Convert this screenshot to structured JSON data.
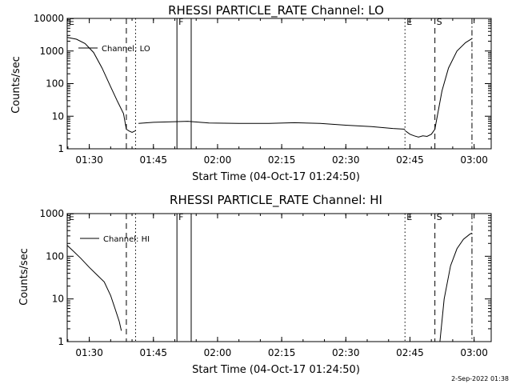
{
  "timestamp": "2-Sep-2022 01:38",
  "chart_data": [
    {
      "type": "line",
      "title": "RHESSI PARTICLE_RATE Channel: LO",
      "xlabel": "Start Time (04-Oct-17 01:24:50)",
      "ylabel": "Counts/sec",
      "yscale": "log",
      "xlim": [
        "01:24:50",
        "03:04:00"
      ],
      "ylim": [
        1,
        10000
      ],
      "x_ticks": [
        "01:30",
        "01:45",
        "02:00",
        "02:15",
        "02:30",
        "02:45",
        "03:00"
      ],
      "y_ticks": [
        "1",
        "10",
        "100",
        "1000",
        "10000"
      ],
      "legend": {
        "label": "Channel: LO",
        "position": "top-left"
      },
      "markers": [
        {
          "label": "E",
          "time": "01:24:50",
          "style": "dash-dot"
        },
        {
          "label": "",
          "time": "01:38:40",
          "style": "dashed"
        },
        {
          "label": "",
          "time": "01:40:50",
          "style": "dotted"
        },
        {
          "label": "F",
          "time": "01:50:30",
          "style": "solid"
        },
        {
          "label": "",
          "time": "01:53:50",
          "style": "solid"
        },
        {
          "label": "E",
          "time": "02:43:50",
          "style": "dotted"
        },
        {
          "label": "S",
          "time": "02:50:50",
          "style": "dashed"
        },
        {
          "label": "",
          "time": "02:59:30",
          "style": "dash-dot"
        }
      ],
      "series": [
        {
          "name": "Channel: LO",
          "segments": [
            {
              "x": [
                "01:24:50",
                "01:27:00",
                "01:29:00",
                "01:31:00",
                "01:33:00",
                "01:35:00",
                "01:36:30",
                "01:38:00",
                "01:38:40",
                "01:39:20",
                "01:40:00",
                "01:40:50"
              ],
              "y": [
                2600,
                2300,
                1700,
                900,
                300,
                80,
                30,
                12,
                4,
                3.5,
                3.2,
                3.6
              ]
            },
            {
              "x": [
                "01:41:30",
                "01:45:00",
                "01:50:00",
                "01:53:00",
                "01:58:00",
                "02:05:00",
                "02:12:00",
                "02:18:00",
                "02:24:00",
                "02:30:00",
                "02:36:00",
                "02:41:00",
                "02:43:50"
              ],
              "y": [
                6,
                6.5,
                6.8,
                7,
                6.2,
                6,
                6,
                6.3,
                6,
                5.3,
                4.8,
                4.2,
                4
              ]
            },
            {
              "x": [
                "02:44:00",
                "02:45:00",
                "02:46:00",
                "02:47:00",
                "02:48:00",
                "02:49:00",
                "02:50:00",
                "02:50:50",
                "02:51:30",
                "02:52:30",
                "02:54:00",
                "02:56:00",
                "02:58:00",
                "02:59:30"
              ],
              "y": [
                3.5,
                2.8,
                2.5,
                2.3,
                2.5,
                2.4,
                2.8,
                4,
                12,
                60,
                300,
                1000,
                1800,
                2400
              ]
            }
          ]
        }
      ]
    },
    {
      "type": "line",
      "title": "RHESSI PARTICLE_RATE Channel: HI",
      "xlabel": "Start Time (04-Oct-17 01:24:50)",
      "ylabel": "Counts/sec",
      "yscale": "log",
      "xlim": [
        "01:24:50",
        "03:04:00"
      ],
      "ylim": [
        1,
        1000
      ],
      "x_ticks": [
        "01:30",
        "01:45",
        "02:00",
        "02:15",
        "02:30",
        "02:45",
        "03:00"
      ],
      "y_ticks": [
        "1",
        "10",
        "100",
        "1000"
      ],
      "legend": {
        "label": "Channel: HI",
        "position": "top-left"
      },
      "markers": [
        {
          "label": "E",
          "time": "01:24:50",
          "style": "dash-dot"
        },
        {
          "label": "",
          "time": "01:38:40",
          "style": "dashed"
        },
        {
          "label": "",
          "time": "01:40:50",
          "style": "dotted"
        },
        {
          "label": "F",
          "time": "01:50:30",
          "style": "solid"
        },
        {
          "label": "",
          "time": "01:53:50",
          "style": "solid"
        },
        {
          "label": "E",
          "time": "02:43:50",
          "style": "dotted"
        },
        {
          "label": "S",
          "time": "02:50:50",
          "style": "dashed"
        },
        {
          "label": "",
          "time": "02:59:30",
          "style": "dash-dot"
        }
      ],
      "series": [
        {
          "name": "Channel: HI",
          "segments": [
            {
              "x": [
                "01:24:50",
                "01:26:00",
                "01:28:00",
                "01:30:00",
                "01:32:00",
                "01:33:30",
                "01:35:00",
                "01:36:00",
                "01:37:00",
                "01:37:30"
              ],
              "y": [
                180,
                140,
                90,
                55,
                35,
                25,
                12,
                6,
                3,
                1.8
              ]
            },
            {
              "x": [
                "02:52:00",
                "02:53:00",
                "02:54:30",
                "02:56:00",
                "02:57:30",
                "02:59:00",
                "02:59:30"
              ],
              "y": [
                1,
                10,
                60,
                150,
                250,
                330,
                350
              ]
            }
          ]
        }
      ]
    }
  ]
}
